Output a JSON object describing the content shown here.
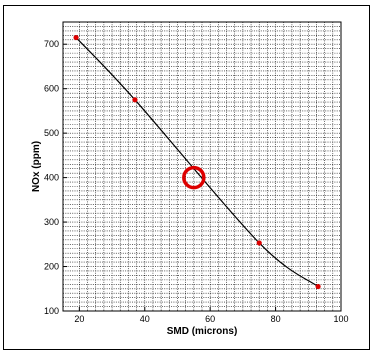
{
  "chart_data": {
    "type": "line",
    "title": "",
    "xlabel": "SMD (microns)",
    "ylabel": "NOx (ppm)",
    "xlim": [
      15,
      100
    ],
    "ylim": [
      100,
      750
    ],
    "x_ticks": [
      20,
      40,
      60,
      80,
      100
    ],
    "y_ticks": [
      100,
      200,
      300,
      400,
      500,
      600,
      700
    ],
    "grid": true,
    "grid_style": "dotted",
    "series": [
      {
        "name": "",
        "color": "#000000",
        "marker_color": "#dd0000",
        "points": [
          {
            "x": 19,
            "y": 715
          },
          {
            "x": 37,
            "y": 575
          },
          {
            "x": 75,
            "y": 253
          },
          {
            "x": 93,
            "y": 155
          }
        ]
      }
    ],
    "highlight": {
      "x": 55,
      "y": 400,
      "color": "#dd0000",
      "shape": "ring"
    }
  }
}
